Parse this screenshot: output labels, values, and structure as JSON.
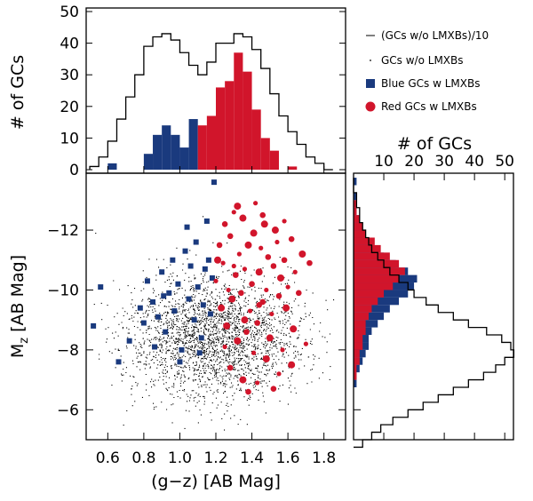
{
  "figure": {
    "colors": {
      "blue": "#1a3a7e",
      "red": "#d1152b",
      "ink": "#000000",
      "dots": "#000000"
    }
  },
  "chart_data": [
    {
      "panel": "top-histogram",
      "type": "bar",
      "ylabel": "# of GCs",
      "xlim": [
        0.48,
        1.92
      ],
      "ylim": [
        0,
        50
      ],
      "yticks": [
        0,
        10,
        20,
        30,
        40,
        50
      ],
      "bin_width": 0.05,
      "bins_start": 0.5,
      "outline_series": {
        "name": "(GCs w/o LMXBs)/10",
        "values": [
          1,
          4,
          9,
          16,
          23,
          30,
          39,
          42,
          43,
          41,
          37,
          33,
          30,
          34,
          40,
          40,
          43,
          42,
          38,
          32,
          24,
          17,
          12,
          8,
          4,
          2,
          0
        ]
      },
      "blue_series": {
        "name": "Blue GCs w LMXBs",
        "values": [
          0,
          0,
          2,
          0,
          0,
          0,
          5,
          11,
          14,
          11,
          7,
          16,
          0,
          0,
          0,
          0,
          0,
          0,
          0,
          0,
          0,
          0,
          0,
          0,
          0,
          0,
          0
        ]
      },
      "red_series": {
        "name": "Red GCs w LMXBs",
        "values": [
          0,
          0,
          0,
          0,
          0,
          0,
          0,
          0,
          0,
          0,
          0,
          0,
          14,
          17,
          26,
          28,
          37,
          31,
          19,
          10,
          6,
          0,
          1,
          0,
          0,
          0,
          0
        ]
      }
    },
    {
      "panel": "scatter",
      "type": "scatter",
      "xlabel": "(g−z) [AB Mag]",
      "ylabel": "M",
      "ylabel_sub": "z",
      "ylabel_tail": " [AB Mag]",
      "xlim": [
        0.48,
        1.92
      ],
      "ylim": [
        -5.0,
        -13.9
      ],
      "xticks": [
        "0.6",
        "0.8",
        "1.0",
        "1.2",
        "1.4",
        "1.6",
        "1.8"
      ],
      "xtick_values": [
        0.6,
        0.8,
        1.0,
        1.2,
        1.4,
        1.6,
        1.8
      ],
      "yticks": [
        "−12",
        "−10",
        "−8",
        "−6"
      ],
      "ytick_values": [
        -12,
        -10,
        -8,
        -6
      ],
      "dot_population": {
        "name": "GCs w/o LMXBs",
        "count": 2600,
        "color_mean": 1.18,
        "color_sigma": 0.24,
        "mag_mean": -8.4,
        "mag_sigma": 1.0
      },
      "blue_points": [
        [
          0.52,
          -8.8
        ],
        [
          0.56,
          -10.1
        ],
        [
          0.66,
          -7.6
        ],
        [
          0.72,
          -8.3
        ],
        [
          0.78,
          -9.4
        ],
        [
          0.8,
          -8.9
        ],
        [
          0.82,
          -10.3
        ],
        [
          0.85,
          -9.6
        ],
        [
          0.88,
          -9.1
        ],
        [
          0.9,
          -10.6
        ],
        [
          0.92,
          -8.6
        ],
        [
          0.94,
          -9.9
        ],
        [
          0.96,
          -11.0
        ],
        [
          0.97,
          -9.3
        ],
        [
          0.99,
          -10.2
        ],
        [
          1.01,
          -8.0
        ],
        [
          1.03,
          -11.3
        ],
        [
          1.05,
          -9.7
        ],
        [
          1.06,
          -10.8
        ],
        [
          1.08,
          -9.0
        ],
        [
          1.09,
          -11.6
        ],
        [
          1.1,
          -10.1
        ],
        [
          1.12,
          -8.4
        ],
        [
          1.13,
          -9.5
        ],
        [
          1.14,
          -10.7
        ],
        [
          1.15,
          -12.3
        ],
        [
          1.16,
          -11.0
        ],
        [
          1.17,
          -9.2
        ],
        [
          1.18,
          -10.4
        ],
        [
          1.19,
          -13.6
        ],
        [
          1.0,
          -7.6
        ],
        [
          0.91,
          -9.8
        ],
        [
          1.11,
          -7.9
        ],
        [
          0.86,
          -8.1
        ],
        [
          1.04,
          -12.1
        ]
      ],
      "red_points": [
        [
          1.2,
          -10.3
        ],
        [
          1.22,
          -11.5
        ],
        [
          1.23,
          -9.4
        ],
        [
          1.24,
          -10.9
        ],
        [
          1.25,
          -12.2
        ],
        [
          1.26,
          -8.8
        ],
        [
          1.27,
          -10.0
        ],
        [
          1.28,
          -11.8
        ],
        [
          1.29,
          -9.7
        ],
        [
          1.3,
          -12.6
        ],
        [
          1.31,
          -10.5
        ],
        [
          1.32,
          -8.3
        ],
        [
          1.33,
          -11.2
        ],
        [
          1.34,
          -9.9
        ],
        [
          1.35,
          -12.4
        ],
        [
          1.36,
          -10.7
        ],
        [
          1.37,
          -8.6
        ],
        [
          1.38,
          -11.5
        ],
        [
          1.39,
          -9.3
        ],
        [
          1.4,
          -10.2
        ],
        [
          1.41,
          -11.9
        ],
        [
          1.42,
          -12.9
        ],
        [
          1.43,
          -8.9
        ],
        [
          1.44,
          -10.6
        ],
        [
          1.45,
          -11.4
        ],
        [
          1.46,
          -9.6
        ],
        [
          1.47,
          -12.2
        ],
        [
          1.48,
          -10.0
        ],
        [
          1.49,
          -11.1
        ],
        [
          1.5,
          -8.4
        ],
        [
          1.51,
          -9.2
        ],
        [
          1.52,
          -10.8
        ],
        [
          1.53,
          -12.0
        ],
        [
          1.54,
          -11.6
        ],
        [
          1.55,
          -9.8
        ],
        [
          1.56,
          -10.4
        ],
        [
          1.57,
          -8.0
        ],
        [
          1.58,
          -11.0
        ],
        [
          1.59,
          -9.4
        ],
        [
          1.6,
          -10.1
        ],
        [
          1.62,
          -11.7
        ],
        [
          1.63,
          -8.7
        ],
        [
          1.64,
          -10.6
        ],
        [
          1.66,
          -9.9
        ],
        [
          1.68,
          -11.2
        ],
        [
          1.7,
          -8.2
        ],
        [
          1.72,
          -10.9
        ],
        [
          1.35,
          -7.0
        ],
        [
          1.43,
          -6.9
        ],
        [
          1.28,
          -7.4
        ],
        [
          1.48,
          -7.7
        ],
        [
          1.55,
          -7.2
        ],
        [
          1.38,
          -6.6
        ],
        [
          1.62,
          -7.5
        ],
        [
          1.25,
          -8.1
        ],
        [
          1.46,
          -12.5
        ],
        [
          1.32,
          -12.8
        ],
        [
          1.41,
          -7.9
        ],
        [
          1.52,
          -6.7
        ],
        [
          1.36,
          -9.0
        ],
        [
          1.3,
          -10.8
        ],
        [
          1.44,
          -9.5
        ],
        [
          1.21,
          -11.0
        ],
        [
          1.58,
          -12.3
        ]
      ]
    },
    {
      "panel": "right-histogram",
      "type": "bar",
      "orientation": "horizontal",
      "title": "# of GCs",
      "xticks": [
        "10",
        "20",
        "30",
        "40",
        "50"
      ],
      "xtick_values": [
        10,
        20,
        30,
        40,
        50
      ],
      "xlim": [
        0,
        52
      ],
      "bin_width": 0.25,
      "bins_top_mag": -13.75,
      "outline_series": {
        "name": "(GCs w/o LMXBs)/10",
        "values": [
          0,
          0,
          1,
          1,
          2,
          2,
          3,
          4,
          5,
          6,
          8,
          10,
          12,
          15,
          18,
          20,
          24,
          28,
          33,
          38,
          44,
          49,
          52,
          53,
          50,
          47,
          43,
          38,
          33,
          28,
          23,
          18,
          13,
          9,
          6,
          3
        ]
      },
      "blue_series": {
        "name": "Blue GCs w LMXBs",
        "values": [
          1,
          0,
          1,
          0,
          1,
          2,
          2,
          3,
          5,
          7,
          10,
          14,
          18,
          21,
          20,
          18,
          15,
          12,
          10,
          8,
          6,
          5,
          5,
          4,
          3,
          2,
          1,
          1,
          0,
          0,
          0,
          0,
          0,
          0,
          0,
          0
        ]
      },
      "red_series": {
        "name": "Red GCs w LMXBs",
        "values": [
          0,
          0,
          0,
          1,
          1,
          2,
          3,
          4,
          7,
          9,
          12,
          15,
          17,
          15,
          13,
          10,
          8,
          6,
          5,
          4,
          4,
          3,
          3,
          2,
          2,
          1,
          1,
          0,
          0,
          0,
          0,
          0,
          0,
          0,
          0,
          0
        ]
      }
    }
  ],
  "legend": {
    "placement": "top-right",
    "items": [
      {
        "label": "(GCs w/o LMXBs)/10",
        "marker": "line"
      },
      {
        "label": "GCs w/o LMXBs",
        "marker": "dot"
      },
      {
        "label": "Blue GCs w LMXBs",
        "marker": "blue-square"
      },
      {
        "label": "Red GCs w LMXBs",
        "marker": "red-circle"
      }
    ]
  }
}
